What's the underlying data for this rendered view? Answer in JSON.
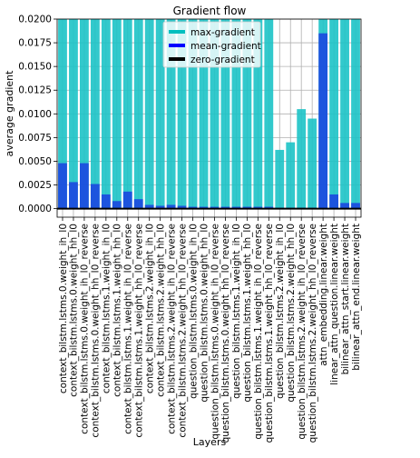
{
  "chart_data": {
    "type": "bar",
    "title": "Gradient flow",
    "xlabel": "Layers",
    "ylabel": "average gradient",
    "ylim": [
      -0.0009,
      0.02
    ],
    "yticks": [
      "0.0000",
      "0.0025",
      "0.0050",
      "0.0075",
      "0.0100",
      "0.0125",
      "0.0150",
      "0.0175",
      "0.0200"
    ],
    "ytick_values": [
      0,
      0.0025,
      0.005,
      0.0075,
      0.01,
      0.0125,
      0.015,
      0.0175,
      0.02
    ],
    "grid": true,
    "legend_position": "top-center",
    "colors": {
      "max": "#1cc3c6",
      "mean": "#1a3fe0",
      "zero": "#000000",
      "grid": "#b0b0b0"
    },
    "legend": [
      {
        "name": "max-gradient",
        "color": "#00bfbf"
      },
      {
        "name": "mean-gradient",
        "color": "#0000ff"
      },
      {
        "name": "zero-gradient",
        "color": "#000000"
      }
    ],
    "categories": [
      "context_bilstm.lstms.0.weight_ih_l0",
      "context_bilstm.lstms.0.weight_hh_l0",
      "context_bilstm.lstms.0.weight_ih_l0_reverse",
      "context_bilstm.lstms.0.weight_hh_l0_reverse",
      "context_bilstm.lstms.1.weight_ih_l0",
      "context_bilstm.lstms.1.weight_hh_l0",
      "context_bilstm.lstms.1.weight_ih_l0_reverse",
      "context_bilstm.lstms.1.weight_hh_l0_reverse",
      "context_bilstm.lstms.2.weight_ih_l0",
      "context_bilstm.lstms.2.weight_hh_l0",
      "context_bilstm.lstms.2.weight_ih_l0_reverse",
      "context_bilstm.lstms.2.weight_hh_l0_reverse",
      "question_bilstm.lstms.0.weight_ih_l0",
      "question_bilstm.lstms.0.weight_hh_l0",
      "question_bilstm.lstms.0.weight_ih_l0_reverse",
      "question_bilstm.lstms.0.weight_hh_l0_reverse",
      "question_bilstm.lstms.1.weight_ih_l0",
      "question_bilstm.lstms.1.weight_hh_l0",
      "question_bilstm.lstms.1.weight_ih_l0_reverse",
      "question_bilstm.lstms.1.weight_hh_l0_reverse",
      "question_bilstm.lstms.2.weight_ih_l0",
      "question_bilstm.lstms.2.weight_hh_l0",
      "question_bilstm.lstms.2.weight_ih_l0_reverse",
      "question_bilstm.lstms.2.weight_hh_l0_reverse",
      "attn_embedding.linear.weight",
      "linear_attn_question.linear.weight",
      "bilinear_attn_start.linear.weight",
      "bilinear_attn_end.linear.weight"
    ],
    "series": [
      {
        "name": "max-gradient",
        "values": [
          0.02,
          0.02,
          0.02,
          0.02,
          0.02,
          0.02,
          0.02,
          0.02,
          0.02,
          0.02,
          0.02,
          0.02,
          0.02,
          0.02,
          0.02,
          0.02,
          0.02,
          0.02,
          0.02,
          0.02,
          0.0062,
          0.007,
          0.0105,
          0.0095,
          0.02,
          0.02,
          0.02,
          0.02
        ]
      },
      {
        "name": "mean-gradient",
        "values": [
          0.0048,
          0.0028,
          0.0048,
          0.0026,
          0.0015,
          0.0008,
          0.0018,
          0.001,
          0.0004,
          0.0003,
          0.0004,
          0.0003,
          0.0002,
          0.0002,
          0.0002,
          0.0002,
          0.0002,
          0.0002,
          0.0002,
          0.0002,
          0.0001,
          0.0001,
          0.0001,
          0.0001,
          0.0185,
          0.0015,
          0.0006,
          0.0006
        ]
      }
    ]
  }
}
